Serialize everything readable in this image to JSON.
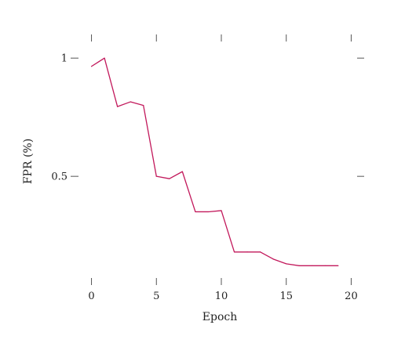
{
  "chart_data": {
    "type": "line",
    "title": "",
    "xlabel": "Epoch",
    "ylabel": "FPR (%)",
    "xlim": [
      -1,
      21
    ],
    "ylim": [
      0.07,
      1.1
    ],
    "xticks": [
      0,
      5,
      10,
      15,
      20
    ],
    "yticks": [
      0.5,
      1
    ],
    "xtick_labels": [
      "0",
      "5",
      "10",
      "15",
      "20"
    ],
    "ytick_labels": [
      "0.5",
      "1"
    ],
    "grid": false,
    "legend": "none",
    "series": [
      {
        "color": "#c2185b",
        "x": [
          0,
          1,
          2,
          3,
          4,
          5,
          6,
          7,
          8,
          9,
          10,
          11,
          12,
          13,
          14,
          15,
          16,
          17,
          18,
          19
        ],
        "y": [
          0.965,
          1.0,
          0.795,
          0.815,
          0.8,
          0.5,
          0.49,
          0.52,
          0.35,
          0.35,
          0.355,
          0.18,
          0.18,
          0.18,
          0.15,
          0.13,
          0.122,
          0.122,
          0.122,
          0.122
        ]
      }
    ]
  }
}
